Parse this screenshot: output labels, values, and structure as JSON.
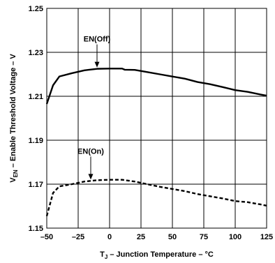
{
  "chart_data": {
    "type": "line",
    "xlabel_main": "T",
    "xlabel_sub": "J",
    "xlabel_rest": " – Junction Temperature – °C",
    "ylabel_main": "V",
    "ylabel_sub": "EN",
    "ylabel_rest": " – Enable Threshold Voltage – V",
    "xlim": [
      -50,
      125
    ],
    "ylim": [
      1.15,
      1.25
    ],
    "xticks": [
      -50,
      -25,
      0,
      25,
      50,
      75,
      100,
      125
    ],
    "yticks": [
      1.15,
      1.17,
      1.19,
      1.21,
      1.23,
      1.25
    ],
    "xtick_labels": [
      "–50",
      "–25",
      "0",
      "25",
      "50",
      "75",
      "100",
      "125"
    ],
    "ytick_labels": [
      "1.15",
      "1.17",
      "1.19",
      "1.21",
      "1.23",
      "1.25"
    ],
    "grid": true,
    "series": [
      {
        "name": "EN(Off)",
        "style": "solid",
        "x": [
          -50,
          -45,
          -40,
          -30,
          -20,
          -10,
          0,
          10,
          12,
          20,
          30,
          40,
          50,
          60,
          70,
          80,
          90,
          100,
          110,
          120,
          125
        ],
        "y": [
          1.2065,
          1.215,
          1.219,
          1.2205,
          1.2218,
          1.2225,
          1.2226,
          1.2226,
          1.2221,
          1.222,
          1.221,
          1.22,
          1.219,
          1.218,
          1.2165,
          1.2155,
          1.2142,
          1.2128,
          1.212,
          1.2108,
          1.2103
        ]
      },
      {
        "name": "EN(On)",
        "style": "dashed",
        "x": [
          -50,
          -45,
          -40,
          -30,
          -20,
          -10,
          0,
          10,
          20,
          30,
          40,
          50,
          60,
          70,
          80,
          90,
          100,
          110,
          120,
          125
        ],
        "y": [
          1.1555,
          1.166,
          1.169,
          1.17,
          1.1712,
          1.1718,
          1.172,
          1.172,
          1.1712,
          1.17,
          1.1688,
          1.1678,
          1.1668,
          1.1655,
          1.1645,
          1.1635,
          1.1623,
          1.1618,
          1.1608,
          1.1602
        ]
      }
    ],
    "annotations": [
      {
        "text": "EN(Off)",
        "target_x": -10,
        "target_y": 1.2228
      },
      {
        "text": "EN(On)",
        "target_x": -15,
        "target_y": 1.1718
      }
    ]
  }
}
